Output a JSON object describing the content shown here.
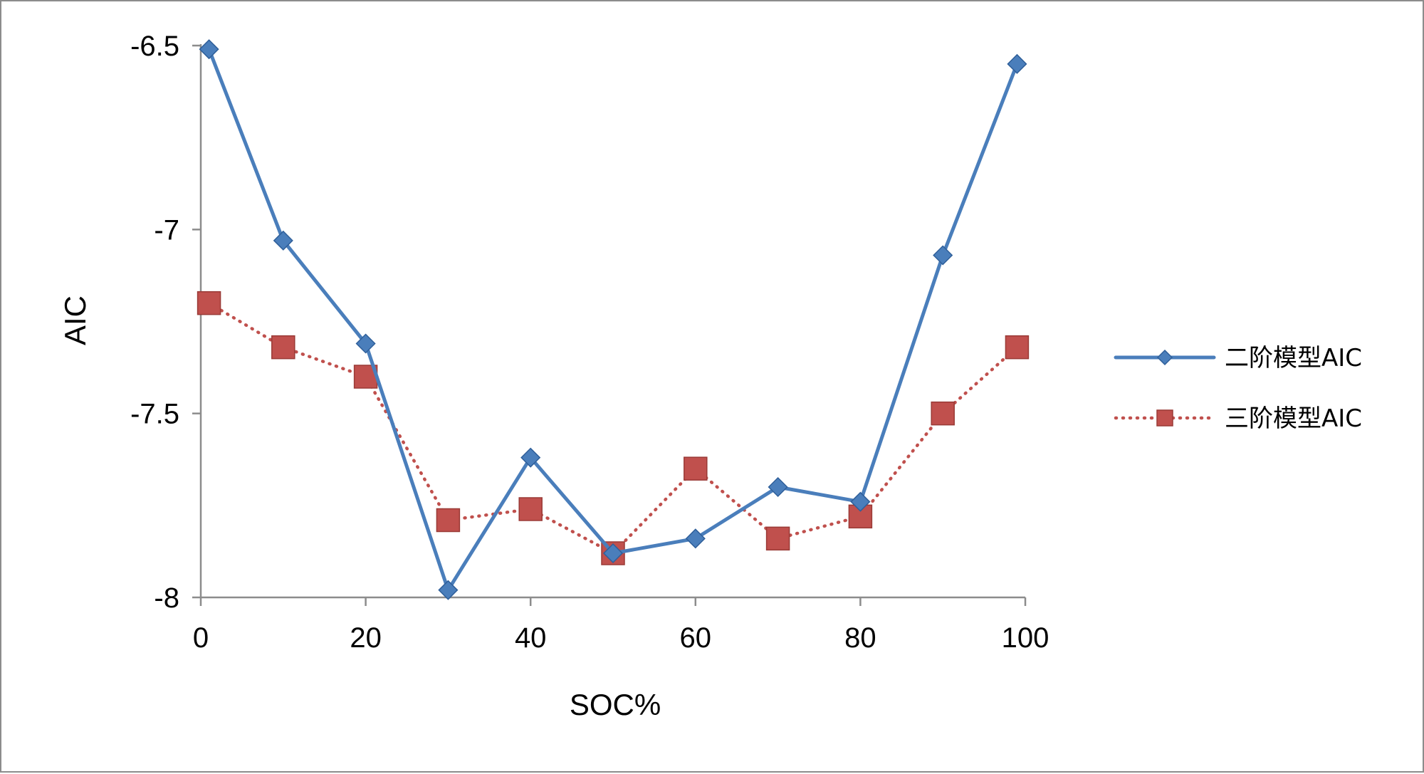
{
  "chart_data": {
    "type": "line",
    "title": "",
    "xlabel": "SOC%",
    "ylabel": "AIC",
    "xlim": [
      0,
      100
    ],
    "ylim": [
      -8,
      -6.5
    ],
    "xticks": [
      0,
      20,
      40,
      60,
      80,
      100
    ],
    "yticks": [
      -6.5,
      -7,
      -7.5,
      -8
    ],
    "xtick_labels": [
      "0",
      "20",
      "40",
      "60",
      "80",
      "100"
    ],
    "ytick_labels": [
      "-6.5",
      "-7",
      "-7.5",
      "-8"
    ],
    "grid": false,
    "legend_position": "right",
    "series": [
      {
        "name": "二阶模型AIC",
        "color": "#4a7ebb",
        "line_style": "solid",
        "marker": "diamond",
        "x": [
          1,
          10,
          20,
          30,
          40,
          50,
          60,
          70,
          80,
          90,
          99
        ],
        "values": [
          -6.51,
          -7.03,
          -7.31,
          -7.98,
          -7.62,
          -7.88,
          -7.84,
          -7.7,
          -7.74,
          -7.07,
          -6.55
        ]
      },
      {
        "name": "三阶模型AIC",
        "color": "#c0504d",
        "line_style": "dotted",
        "marker": "square",
        "x": [
          1,
          10,
          20,
          30,
          40,
          50,
          60,
          70,
          80,
          90,
          99
        ],
        "values": [
          -7.2,
          -7.32,
          -7.4,
          -7.79,
          -7.76,
          -7.88,
          -7.65,
          -7.84,
          -7.78,
          -7.5,
          -7.32
        ]
      }
    ]
  }
}
